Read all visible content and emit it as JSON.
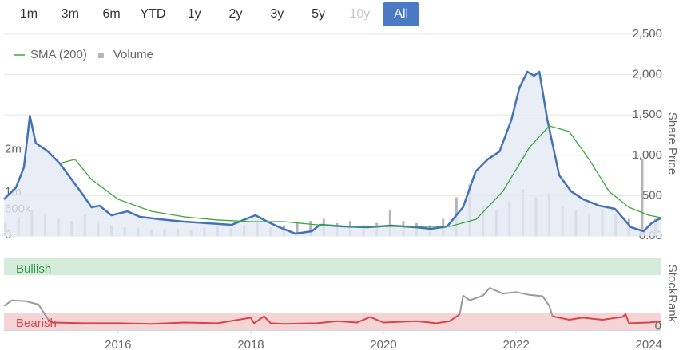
{
  "range_buttons": [
    {
      "label": "1m",
      "state": "normal"
    },
    {
      "label": "3m",
      "state": "normal"
    },
    {
      "label": "6m",
      "state": "normal"
    },
    {
      "label": "YTD",
      "state": "normal"
    },
    {
      "label": "1y",
      "state": "normal"
    },
    {
      "label": "2y",
      "state": "normal"
    },
    {
      "label": "3y",
      "state": "normal"
    },
    {
      "label": "5y",
      "state": "normal"
    },
    {
      "label": "10y",
      "state": "disabled"
    },
    {
      "label": "All",
      "state": "selected"
    }
  ],
  "chart_data": [
    {
      "type": "line",
      "ylabel": "Share Price",
      "grid": true,
      "legend": "top-left",
      "xlim": [
        2014.28,
        2024.19
      ],
      "ylim": [
        0,
        2500
      ],
      "yticks": [
        {
          "value": 0,
          "label": "0.00"
        },
        500,
        {
          "value": 1000,
          "label": "1,000"
        },
        {
          "value": 1500,
          "label": "1,500"
        },
        {
          "value": 2000,
          "label": "2,000"
        },
        {
          "value": 2500,
          "label": "2,500"
        }
      ],
      "y2lim": [
        0,
        4700000
      ],
      "y2ticks": [
        0,
        {
          "value": 600000,
          "label": "600k"
        },
        {
          "value": 1000000,
          "label": "1m"
        },
        {
          "value": 2000000,
          "label": "2m"
        }
      ],
      "x": [
        2014.28,
        2014.46,
        2014.58,
        2014.67,
        2014.76,
        2014.94,
        2015.12,
        2015.3,
        2015.48,
        2015.6,
        2015.72,
        2015.9,
        2016.14,
        2016.33,
        2016.63,
        2016.99,
        2017.35,
        2017.71,
        2017.89,
        2018.07,
        2018.25,
        2018.43,
        2018.67,
        2018.92,
        2019.04,
        2019.4,
        2019.76,
        2020.12,
        2020.48,
        2020.72,
        2020.96,
        2021.2,
        2021.39,
        2021.57,
        2021.75,
        2021.93,
        2022.05,
        2022.17,
        2022.27,
        2022.35,
        2022.47,
        2022.65,
        2022.83,
        2023.01,
        2023.25,
        2023.49,
        2023.73,
        2023.92,
        2024.04,
        2024.19
      ],
      "series": [
        {
          "color": "#4472b8",
          "fill": "#e4e9f4",
          "values": [
            455,
            600,
            850,
            1490,
            1150,
            1050,
            900,
            700,
            500,
            356,
            375,
            257,
            306,
            237,
            208,
            178,
            158,
            138,
            198,
            257,
            178,
            109,
            30,
            59,
            138,
            119,
            109,
            128,
            109,
            89,
            119,
            356,
            800,
            949,
            1047,
            1443,
            1838,
            2036,
            1986,
            2036,
            1443,
            751,
            553,
            455,
            376,
            336,
            109,
            59,
            158,
            227
          ]
        },
        {
          "name": "SMA (200)",
          "color": "#3aa83a",
          "x": [
            2015.12,
            2015.35,
            2015.6,
            2016.0,
            2016.5,
            2017.0,
            2017.5,
            2018.0,
            2018.5,
            2019.0,
            2019.5,
            2020.0,
            2020.5,
            2021.0,
            2021.4,
            2021.8,
            2022.2,
            2022.5,
            2022.8,
            2023.1,
            2023.4,
            2023.7,
            2024.0,
            2024.19
          ],
          "values": [
            900,
            950,
            700,
            455,
            306,
            237,
            198,
            178,
            178,
            138,
            119,
            119,
            119,
            119,
            208,
            553,
            1097,
            1364,
            1294,
            949,
            553,
            356,
            257,
            227
          ]
        },
        {
          "name": "Volume",
          "type": "bar",
          "axis": "y2",
          "color": "#b4b4bc",
          "x": [
            2014.3,
            2014.5,
            2014.7,
            2014.9,
            2015.1,
            2015.3,
            2015.5,
            2015.7,
            2015.9,
            2016.1,
            2016.3,
            2016.5,
            2016.7,
            2016.9,
            2017.1,
            2017.3,
            2017.5,
            2017.7,
            2017.9,
            2018.1,
            2018.3,
            2018.5,
            2018.7,
            2018.9,
            2019.1,
            2019.3,
            2019.5,
            2019.7,
            2019.9,
            2020.1,
            2020.3,
            2020.5,
            2020.7,
            2020.9,
            2021.1,
            2021.3,
            2021.5,
            2021.7,
            2021.9,
            2022.1,
            2022.3,
            2022.5,
            2022.7,
            2022.9,
            2023.1,
            2023.3,
            2023.5,
            2023.7,
            2023.9,
            2024.1
          ],
          "values": [
            300000,
            450000,
            600000,
            500000,
            400000,
            350000,
            500000,
            300000,
            250000,
            200000,
            180000,
            150000,
            160000,
            170000,
            150000,
            200000,
            220000,
            180000,
            250000,
            300000,
            200000,
            250000,
            300000,
            350000,
            400000,
            300000,
            350000,
            250000,
            300000,
            600000,
            350000,
            300000,
            250000,
            400000,
            900000,
            1200000,
            700000,
            600000,
            800000,
            1100000,
            900000,
            1000000,
            700000,
            600000,
            500000,
            600000,
            500000,
            400000,
            1800000,
            400000
          ]
        }
      ]
    },
    {
      "type": "line",
      "ylabel": "StockRank",
      "xlim": [
        2014.28,
        2024.19
      ],
      "xticks": [
        2016,
        2018,
        2020,
        2022,
        2024
      ],
      "ylim": [
        -5,
        100
      ],
      "yticks": [
        0
      ],
      "bands": [
        {
          "label": "Bullish",
          "color": "#d6ecda",
          "text_color": "#2f9a45"
        },
        {
          "label": "Bearish",
          "color": "#f4d4d5",
          "text_color": "#d9444a"
        }
      ],
      "x": [
        2014.28,
        2014.4,
        2014.6,
        2014.8,
        2014.95,
        2015.0,
        2015.5,
        2016.0,
        2016.5,
        2017.0,
        2017.5,
        2018.0,
        2018.05,
        2018.2,
        2018.3,
        2018.5,
        2019.0,
        2019.3,
        2019.6,
        2019.8,
        2020.0,
        2020.5,
        2020.8,
        2021.0,
        2021.15,
        2021.2,
        2021.3,
        2021.5,
        2021.6,
        2021.8,
        2022.0,
        2022.2,
        2022.4,
        2022.5,
        2022.55,
        2022.8,
        2023.0,
        2023.3,
        2023.6,
        2023.65,
        2023.7,
        2024.0,
        2024.19
      ],
      "series": [
        {
          "color": "#9a9a9a",
          "values": [
            30,
            38,
            37,
            32,
            10,
            null,
            null,
            null,
            null,
            null,
            null,
            null,
            null,
            null,
            null,
            null,
            null,
            null,
            null,
            null,
            null,
            null,
            null,
            null,
            18,
            45,
            38,
            45,
            56,
            48,
            50,
            46,
            44,
            30,
            15,
            null,
            null,
            null,
            null,
            null,
            null,
            null,
            null
          ]
        },
        {
          "color": "#d9444a",
          "values": [
            null,
            null,
            null,
            null,
            10,
            6,
            5,
            5,
            4,
            6,
            5,
            13,
            5,
            15,
            5,
            4,
            5,
            8,
            6,
            14,
            6,
            8,
            5,
            8,
            18,
            null,
            null,
            null,
            null,
            null,
            null,
            null,
            null,
            null,
            15,
            10,
            13,
            10,
            14,
            18,
            5,
            6,
            8
          ]
        }
      ]
    }
  ]
}
